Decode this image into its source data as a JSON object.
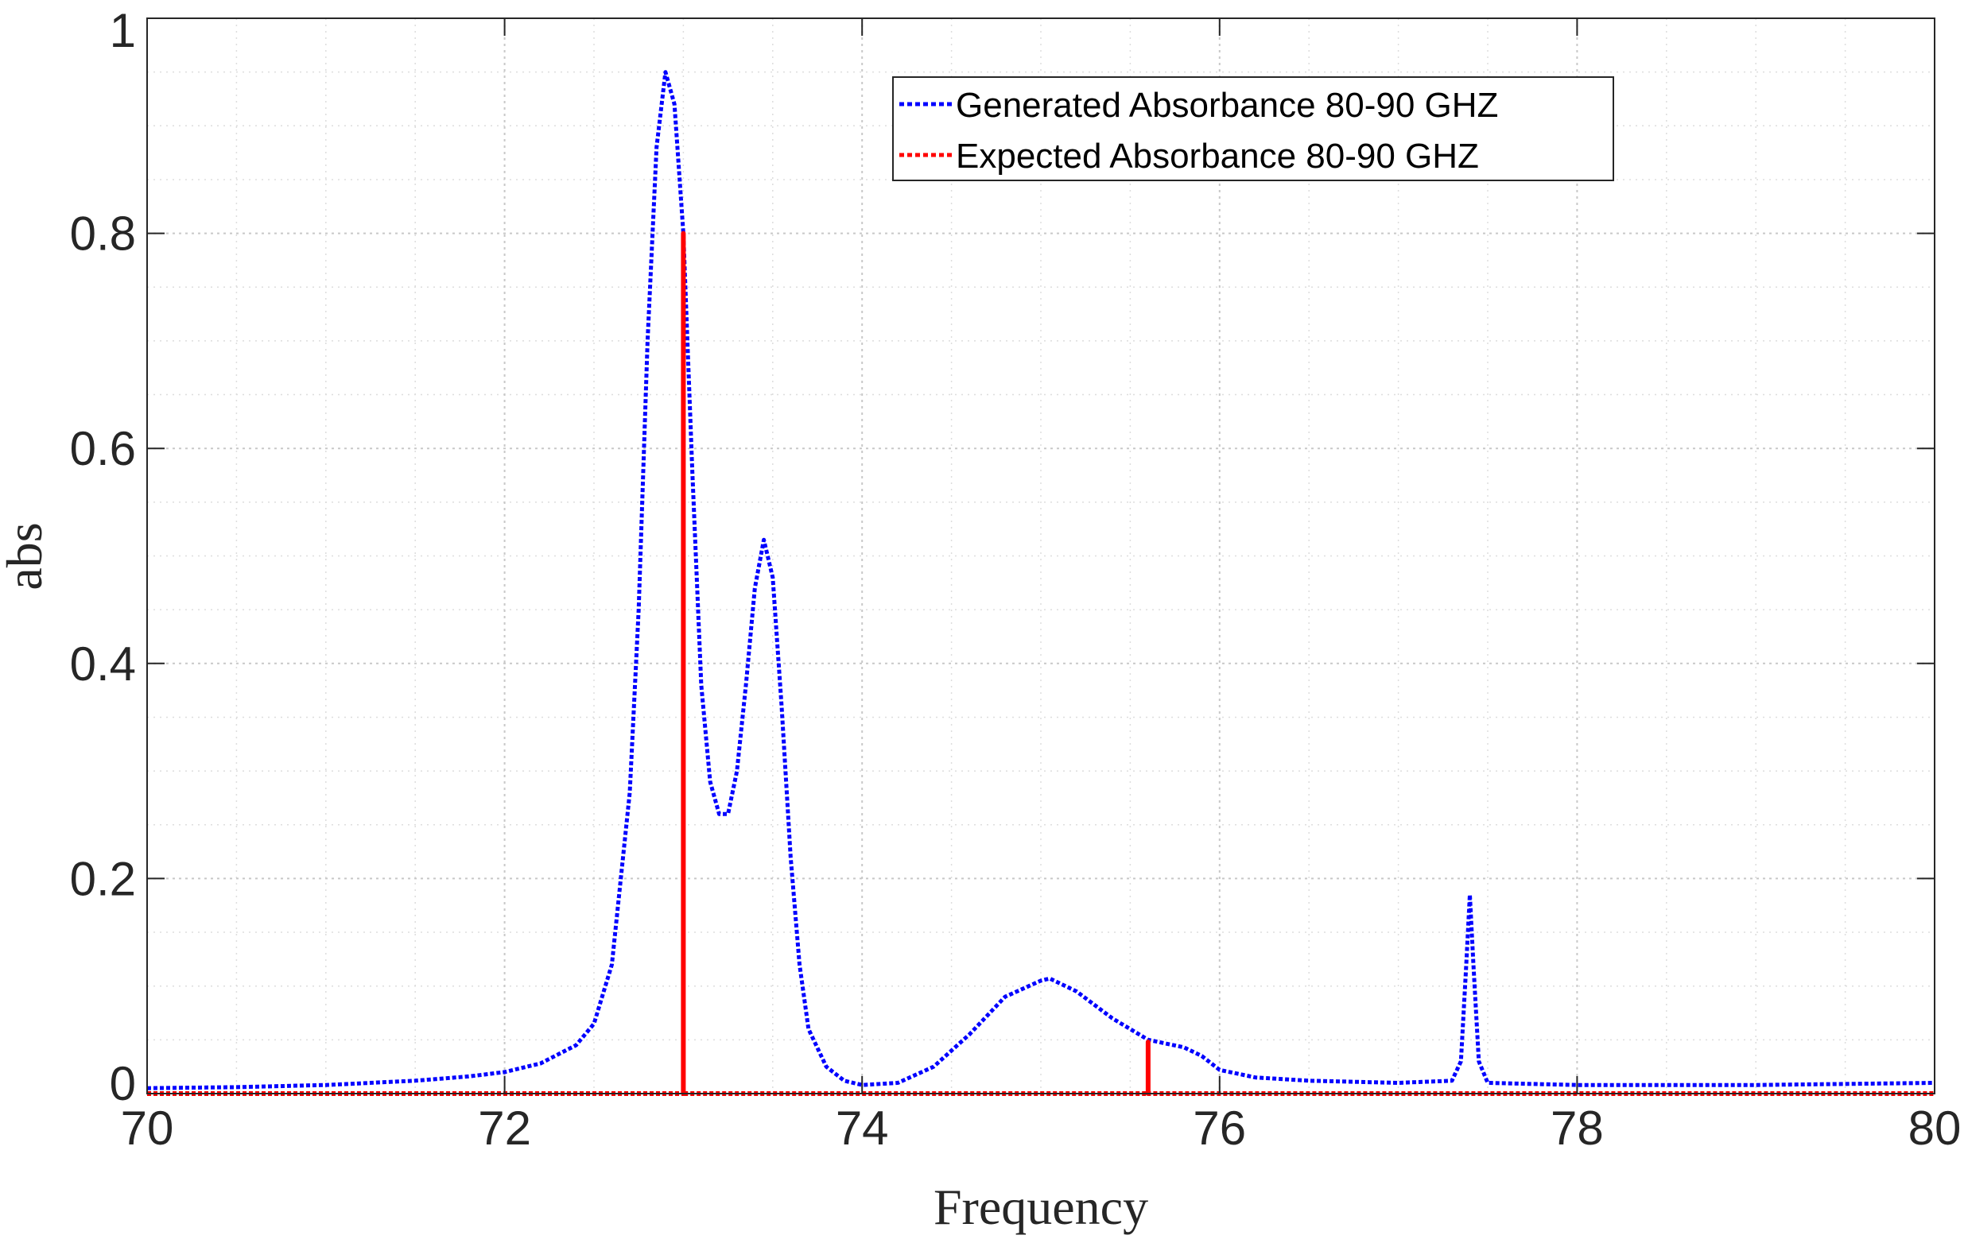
{
  "chart_data": {
    "type": "line",
    "xlabel": "Frequency",
    "ylabel": "abs",
    "xlim": [
      70,
      80
    ],
    "ylim": [
      0,
      1
    ],
    "xticks": [
      "70",
      "72",
      "74",
      "76",
      "78",
      "80"
    ],
    "yticks": [
      "0",
      "0.2",
      "0.4",
      "0.6",
      "0.8",
      "1"
    ],
    "grid": "major and minor dotted",
    "legend_position": "top-right",
    "colors": {
      "generated": "#0000ff",
      "expected": "#ff0000",
      "axes": "#262626",
      "grid": "#c8c8c8"
    },
    "series": [
      {
        "name": "Generated Absorbance 80-90 GHZ",
        "style": "dotted",
        "x": [
          70.0,
          70.5,
          71.0,
          71.5,
          71.8,
          72.0,
          72.2,
          72.4,
          72.5,
          72.6,
          72.7,
          72.75,
          72.8,
          72.85,
          72.9,
          72.95,
          73.0,
          73.05,
          73.1,
          73.15,
          73.2,
          73.25,
          73.3,
          73.35,
          73.4,
          73.45,
          73.5,
          73.55,
          73.6,
          73.65,
          73.7,
          73.8,
          73.9,
          74.0,
          74.2,
          74.4,
          74.6,
          74.8,
          75.0,
          75.05,
          75.2,
          75.4,
          75.6,
          75.8,
          75.9,
          76.0,
          76.2,
          76.5,
          77.0,
          77.3,
          77.35,
          77.38,
          77.4,
          77.42,
          77.45,
          77.5,
          78.0,
          79.0,
          80.0
        ],
        "y": [
          0.005,
          0.006,
          0.008,
          0.012,
          0.016,
          0.02,
          0.028,
          0.045,
          0.065,
          0.12,
          0.28,
          0.45,
          0.7,
          0.88,
          0.95,
          0.92,
          0.8,
          0.58,
          0.38,
          0.29,
          0.26,
          0.26,
          0.3,
          0.38,
          0.47,
          0.515,
          0.48,
          0.36,
          0.22,
          0.12,
          0.06,
          0.025,
          0.012,
          0.008,
          0.01,
          0.025,
          0.055,
          0.09,
          0.105,
          0.107,
          0.095,
          0.07,
          0.05,
          0.043,
          0.035,
          0.022,
          0.015,
          0.012,
          0.01,
          0.012,
          0.03,
          0.12,
          0.185,
          0.12,
          0.03,
          0.01,
          0.008,
          0.008,
          0.01
        ]
      },
      {
        "name": "Expected Absorbance 80-90 GHZ",
        "style": "dotted",
        "x": [
          70.0,
          73.0,
          73.0,
          73.0,
          75.6,
          75.6,
          75.6,
          80.0
        ],
        "y": [
          0,
          0,
          0.8,
          0,
          0,
          0.048,
          0,
          0
        ]
      }
    ]
  }
}
